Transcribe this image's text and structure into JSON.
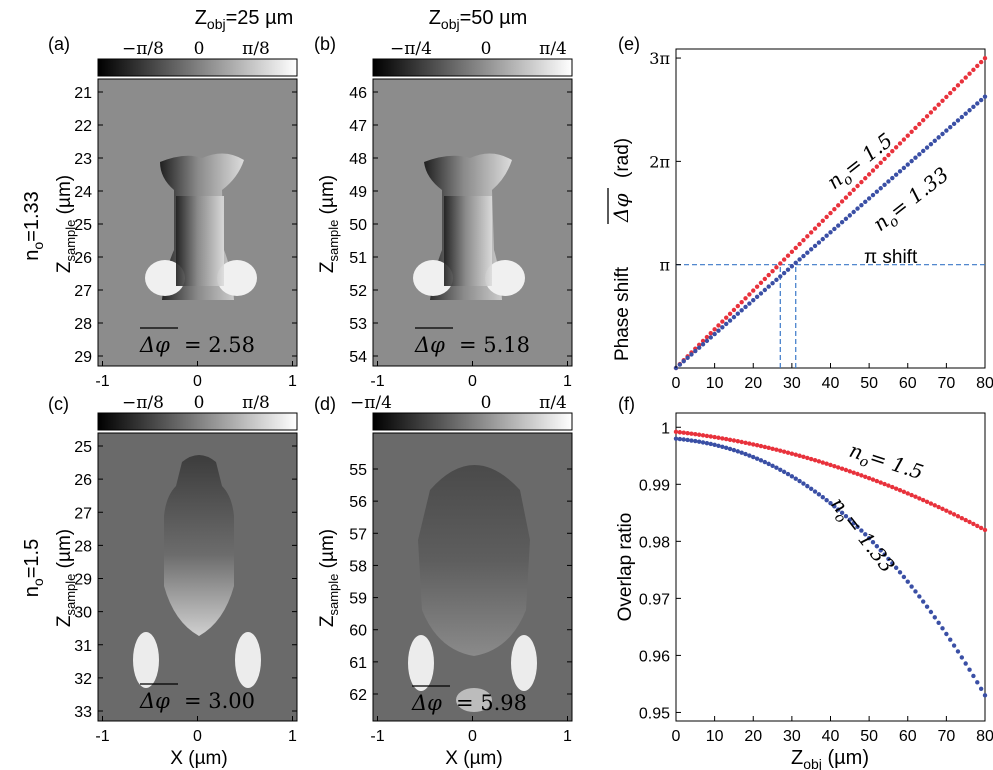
{
  "figure": {
    "col_titles": [
      {
        "prefix": "Z",
        "sub": "obj",
        "suffix": "=25 µm"
      },
      {
        "prefix": "Z",
        "sub": "obj",
        "suffix": "=50 µm"
      }
    ],
    "row_titles": [
      {
        "prefix": "n",
        "sub": "o",
        "suffix": "=1.33"
      },
      {
        "prefix": "n",
        "sub": "o",
        "suffix": "=1.5"
      }
    ],
    "panel_letters": {
      "a": "(a)",
      "b": "(b)",
      "c": "(c)",
      "d": "(d)",
      "e": "(e)",
      "f": "(f)"
    },
    "maps": [
      {
        "id": "a",
        "colorbar_ticks": [
          "−π/8",
          "0",
          "π/8"
        ],
        "colorbar_range": [
          -0.3927,
          0.3927
        ],
        "ylabel_prefix": "Z",
        "ylabel_sub": "sample",
        "ylabel_suffix": " (µm)",
        "yticks": [
          "21",
          "22",
          "23",
          "24",
          "25",
          "26",
          "27",
          "28",
          "29"
        ],
        "xticks": [
          "-1",
          "0",
          "1"
        ],
        "xlabel": "",
        "avg_symbol": "Δφ",
        "avg_value": "= 2.58"
      },
      {
        "id": "b",
        "colorbar_ticks": [
          "−π/4",
          "0",
          "π/4"
        ],
        "colorbar_range": [
          -0.7854,
          0.7854
        ],
        "ylabel_prefix": "Z",
        "ylabel_sub": "sample",
        "ylabel_suffix": " (µm)",
        "yticks": [
          "46",
          "47",
          "48",
          "49",
          "50",
          "51",
          "52",
          "53",
          "54"
        ],
        "xticks": [
          "-1",
          "0",
          "1"
        ],
        "xlabel": "",
        "avg_symbol": "Δφ",
        "avg_value": "= 5.18"
      },
      {
        "id": "c",
        "colorbar_ticks": [
          "−π/8",
          "0",
          "π/8"
        ],
        "colorbar_range": [
          -0.3927,
          0.3927
        ],
        "ylabel_prefix": "Z",
        "ylabel_sub": "sample",
        "ylabel_suffix": " (µm)",
        "yticks": [
          "25",
          "26",
          "27",
          "28",
          "29",
          "30",
          "31",
          "32",
          "33"
        ],
        "xticks": [
          "-1",
          "0",
          "1"
        ],
        "xlabel": "X (µm)",
        "avg_symbol": "Δφ",
        "avg_value": "= 3.00"
      },
      {
        "id": "d",
        "colorbar_ticks": [
          "−π/4",
          "0",
          "π/4"
        ],
        "colorbar_range": [
          -0.7854,
          0.7854
        ],
        "ylabel_prefix": "Z",
        "ylabel_sub": "sample",
        "ylabel_suffix": " (µm)",
        "yticks": [
          "55",
          "56",
          "57",
          "58",
          "59",
          "60",
          "61",
          "62"
        ],
        "xticks": [
          "-1",
          "0",
          "1"
        ],
        "xlabel": "X (µm)",
        "avg_symbol": "Δφ",
        "avg_value": "= 5.98"
      }
    ]
  },
  "chart_data": [
    {
      "type": "scatter",
      "panel": "e",
      "ylabel_text": "Phase shift",
      "ylabel_symbol": "Δφ",
      "ylabel_unit": "(rad)",
      "xlim": [
        0,
        80
      ],
      "ylim": [
        0,
        9.7
      ],
      "xticks": [
        "0",
        "10",
        "20",
        "30",
        "40",
        "50",
        "60",
        "70",
        "80"
      ],
      "xtick_values": [
        0,
        10,
        20,
        30,
        40,
        50,
        60,
        70,
        80
      ],
      "yticks": [
        "π",
        "2π",
        "3π"
      ],
      "ytick_values": [
        3.1416,
        6.2832,
        9.4248
      ],
      "series": [
        {
          "name": "n_o = 1.5",
          "label_lhs": "n",
          "label_sub": "o",
          "label_rhs": "= 1.5",
          "color": "#e8323c",
          "x_start": 0,
          "x_end": 80,
          "y_start": 0,
          "y_end": 9.42
        },
        {
          "name": "n_o = 1.33",
          "label_lhs": "n",
          "label_sub": "o",
          "label_rhs": "= 1.33",
          "color": "#3a4fa5",
          "x_start": 0,
          "x_end": 80,
          "y_start": 0,
          "y_end": 8.25
        }
      ],
      "reference": {
        "label": "π shift",
        "y": 3.1416,
        "x_markers": [
          27,
          31
        ],
        "color": "#3a78c8"
      }
    },
    {
      "type": "scatter",
      "panel": "f",
      "ylabel": "Overlap ratio",
      "xlabel_prefix": "Z",
      "xlabel_sub": "obj",
      "xlabel_suffix": " (µm)",
      "xlim": [
        0,
        80
      ],
      "ylim": [
        0.9485,
        1.0025
      ],
      "xticks": [
        "0",
        "10",
        "20",
        "30",
        "40",
        "50",
        "60",
        "70",
        "80"
      ],
      "xtick_values": [
        0,
        10,
        20,
        30,
        40,
        50,
        60,
        70,
        80
      ],
      "yticks": [
        "1",
        "0.99",
        "0.98",
        "0.97",
        "0.96",
        "0.95"
      ],
      "ytick_values": [
        1.0,
        0.99,
        0.98,
        0.97,
        0.96,
        0.95
      ],
      "series": [
        {
          "name": "n_o = 1.5",
          "label_lhs": "n",
          "label_sub": "o",
          "label_rhs": "= 1.5",
          "color": "#e8323c",
          "x_start": 0,
          "x_end": 80,
          "y_start": 0.9992,
          "y_end": 0.982
        },
        {
          "name": "n_o = 1.33",
          "label_lhs": "n",
          "label_sub": "o",
          "label_rhs": "= 1.33",
          "color": "#3a4fa5",
          "x_start": 0,
          "x_end": 80,
          "y_start": 0.998,
          "y_end": 0.953
        }
      ]
    }
  ]
}
